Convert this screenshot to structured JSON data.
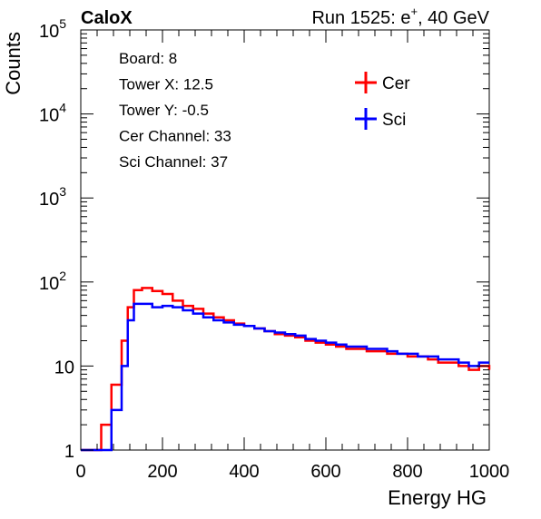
{
  "chart_data": {
    "type": "line",
    "title_left": "CaloX",
    "title_right_prefix": "Run 1525: e",
    "title_right_sup": "+",
    "title_right_suffix": ", 40 GeV",
    "xlabel": "Energy HG",
    "ylabel": "Counts",
    "xlim": [
      0,
      1000
    ],
    "ylim": [
      1,
      100000
    ],
    "yscale": "log",
    "x_ticks": [
      0,
      200,
      400,
      600,
      800,
      1000
    ],
    "x_tick_labels": [
      "0",
      "200",
      "400",
      "600",
      "800",
      "1000"
    ],
    "y_tick_labels": [
      {
        "value": 1,
        "base": "1",
        "exp": ""
      },
      {
        "value": 10,
        "base": "10",
        "exp": ""
      },
      {
        "value": 100,
        "base": "10",
        "exp": "2"
      },
      {
        "value": 1000,
        "base": "10",
        "exp": "3"
      },
      {
        "value": 10000,
        "base": "10",
        "exp": "4"
      },
      {
        "value": 100000,
        "base": "10",
        "exp": "5"
      }
    ],
    "annotations": [
      "Board: 8",
      "Tower X: 12.5",
      "Tower Y: -0.5",
      "Cer Channel: 33",
      "Sci Channel: 37"
    ],
    "legend_position": "top-right",
    "series": [
      {
        "name": "Cer",
        "color": "#ff0000",
        "x": [
          0,
          25,
          50,
          75,
          100,
          115,
          130,
          150,
          175,
          200,
          225,
          250,
          275,
          300,
          325,
          350,
          375,
          400,
          425,
          450,
          475,
          500,
          525,
          550,
          575,
          600,
          625,
          650,
          675,
          700,
          725,
          750,
          775,
          800,
          825,
          850,
          875,
          900,
          925,
          950,
          975,
          1000
        ],
        "y": [
          1,
          1,
          2,
          6,
          20,
          50,
          80,
          85,
          78,
          72,
          60,
          52,
          48,
          42,
          38,
          35,
          32,
          30,
          28,
          26,
          24,
          23,
          22,
          20,
          19,
          18,
          17,
          16,
          16,
          15,
          15,
          14,
          14,
          13,
          13,
          12,
          11,
          11,
          10,
          9,
          10,
          9
        ]
      },
      {
        "name": "Sci",
        "color": "#0000ff",
        "x": [
          0,
          25,
          50,
          75,
          100,
          115,
          130,
          150,
          175,
          200,
          225,
          250,
          275,
          300,
          325,
          350,
          375,
          400,
          425,
          450,
          475,
          500,
          525,
          550,
          575,
          600,
          625,
          650,
          675,
          700,
          725,
          750,
          775,
          800,
          825,
          850,
          875,
          900,
          925,
          950,
          975,
          1000
        ],
        "y": [
          1,
          1,
          1,
          3,
          10,
          35,
          55,
          55,
          50,
          52,
          50,
          46,
          42,
          38,
          35,
          33,
          31,
          30,
          28,
          26,
          25,
          24,
          23,
          21,
          20,
          19,
          18,
          17,
          17,
          16,
          16,
          15,
          14,
          14,
          13,
          13,
          12,
          12,
          11,
          10,
          11,
          11
        ]
      }
    ]
  }
}
